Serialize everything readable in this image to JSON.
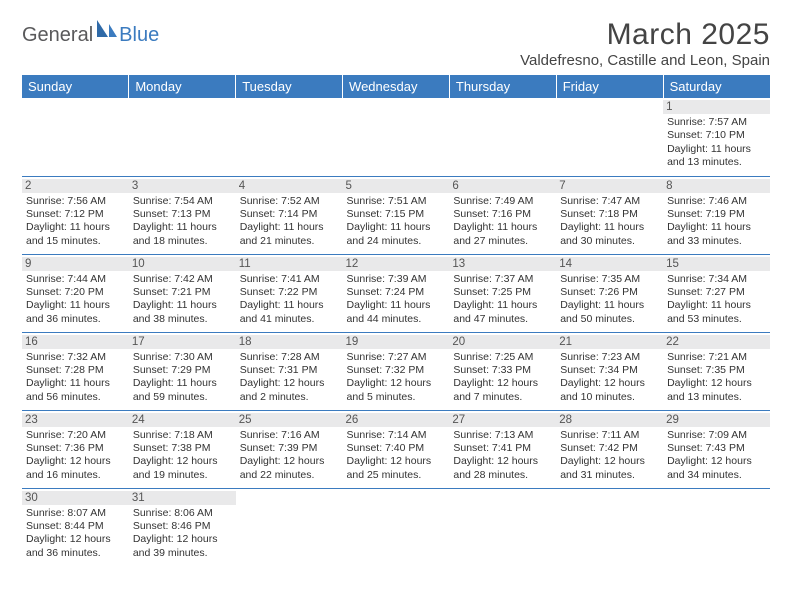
{
  "logo": {
    "main": "General",
    "accent": "Blue"
  },
  "title": "March 2025",
  "location": "Valdefresno, Castille and Leon, Spain",
  "colors": {
    "header_bg": "#3b7bbf",
    "header_text": "#ffffff",
    "daynum_bg": "#e9e9ea",
    "rule": "#3b7bbf",
    "page_bg": "#ffffff",
    "text": "#333333",
    "logo_main": "#59595b",
    "logo_accent": "#3b7bbf"
  },
  "typography": {
    "title_fontsize": 30,
    "location_fontsize": 15,
    "weekday_fontsize": 13,
    "daynum_fontsize": 11.5,
    "cell_fontsize": 10.5
  },
  "weekdays": [
    "Sunday",
    "Monday",
    "Tuesday",
    "Wednesday",
    "Thursday",
    "Friday",
    "Saturday"
  ],
  "weeks": [
    [
      null,
      null,
      null,
      null,
      null,
      null,
      {
        "n": "1",
        "sunrise": "7:57 AM",
        "sunset": "7:10 PM",
        "daylight": "11 hours and 13 minutes."
      }
    ],
    [
      {
        "n": "2",
        "sunrise": "7:56 AM",
        "sunset": "7:12 PM",
        "daylight": "11 hours and 15 minutes."
      },
      {
        "n": "3",
        "sunrise": "7:54 AM",
        "sunset": "7:13 PM",
        "daylight": "11 hours and 18 minutes."
      },
      {
        "n": "4",
        "sunrise": "7:52 AM",
        "sunset": "7:14 PM",
        "daylight": "11 hours and 21 minutes."
      },
      {
        "n": "5",
        "sunrise": "7:51 AM",
        "sunset": "7:15 PM",
        "daylight": "11 hours and 24 minutes."
      },
      {
        "n": "6",
        "sunrise": "7:49 AM",
        "sunset": "7:16 PM",
        "daylight": "11 hours and 27 minutes."
      },
      {
        "n": "7",
        "sunrise": "7:47 AM",
        "sunset": "7:18 PM",
        "daylight": "11 hours and 30 minutes."
      },
      {
        "n": "8",
        "sunrise": "7:46 AM",
        "sunset": "7:19 PM",
        "daylight": "11 hours and 33 minutes."
      }
    ],
    [
      {
        "n": "9",
        "sunrise": "7:44 AM",
        "sunset": "7:20 PM",
        "daylight": "11 hours and 36 minutes."
      },
      {
        "n": "10",
        "sunrise": "7:42 AM",
        "sunset": "7:21 PM",
        "daylight": "11 hours and 38 minutes."
      },
      {
        "n": "11",
        "sunrise": "7:41 AM",
        "sunset": "7:22 PM",
        "daylight": "11 hours and 41 minutes."
      },
      {
        "n": "12",
        "sunrise": "7:39 AM",
        "sunset": "7:24 PM",
        "daylight": "11 hours and 44 minutes."
      },
      {
        "n": "13",
        "sunrise": "7:37 AM",
        "sunset": "7:25 PM",
        "daylight": "11 hours and 47 minutes."
      },
      {
        "n": "14",
        "sunrise": "7:35 AM",
        "sunset": "7:26 PM",
        "daylight": "11 hours and 50 minutes."
      },
      {
        "n": "15",
        "sunrise": "7:34 AM",
        "sunset": "7:27 PM",
        "daylight": "11 hours and 53 minutes."
      }
    ],
    [
      {
        "n": "16",
        "sunrise": "7:32 AM",
        "sunset": "7:28 PM",
        "daylight": "11 hours and 56 minutes."
      },
      {
        "n": "17",
        "sunrise": "7:30 AM",
        "sunset": "7:29 PM",
        "daylight": "11 hours and 59 minutes."
      },
      {
        "n": "18",
        "sunrise": "7:28 AM",
        "sunset": "7:31 PM",
        "daylight": "12 hours and 2 minutes."
      },
      {
        "n": "19",
        "sunrise": "7:27 AM",
        "sunset": "7:32 PM",
        "daylight": "12 hours and 5 minutes."
      },
      {
        "n": "20",
        "sunrise": "7:25 AM",
        "sunset": "7:33 PM",
        "daylight": "12 hours and 7 minutes."
      },
      {
        "n": "21",
        "sunrise": "7:23 AM",
        "sunset": "7:34 PM",
        "daylight": "12 hours and 10 minutes."
      },
      {
        "n": "22",
        "sunrise": "7:21 AM",
        "sunset": "7:35 PM",
        "daylight": "12 hours and 13 minutes."
      }
    ],
    [
      {
        "n": "23",
        "sunrise": "7:20 AM",
        "sunset": "7:36 PM",
        "daylight": "12 hours and 16 minutes."
      },
      {
        "n": "24",
        "sunrise": "7:18 AM",
        "sunset": "7:38 PM",
        "daylight": "12 hours and 19 minutes."
      },
      {
        "n": "25",
        "sunrise": "7:16 AM",
        "sunset": "7:39 PM",
        "daylight": "12 hours and 22 minutes."
      },
      {
        "n": "26",
        "sunrise": "7:14 AM",
        "sunset": "7:40 PM",
        "daylight": "12 hours and 25 minutes."
      },
      {
        "n": "27",
        "sunrise": "7:13 AM",
        "sunset": "7:41 PM",
        "daylight": "12 hours and 28 minutes."
      },
      {
        "n": "28",
        "sunrise": "7:11 AM",
        "sunset": "7:42 PM",
        "daylight": "12 hours and 31 minutes."
      },
      {
        "n": "29",
        "sunrise": "7:09 AM",
        "sunset": "7:43 PM",
        "daylight": "12 hours and 34 minutes."
      }
    ],
    [
      {
        "n": "30",
        "sunrise": "8:07 AM",
        "sunset": "8:44 PM",
        "daylight": "12 hours and 36 minutes."
      },
      {
        "n": "31",
        "sunrise": "8:06 AM",
        "sunset": "8:46 PM",
        "daylight": "12 hours and 39 minutes."
      },
      null,
      null,
      null,
      null,
      null
    ]
  ],
  "labels": {
    "sunrise": "Sunrise:",
    "sunset": "Sunset:",
    "daylight": "Daylight:"
  }
}
